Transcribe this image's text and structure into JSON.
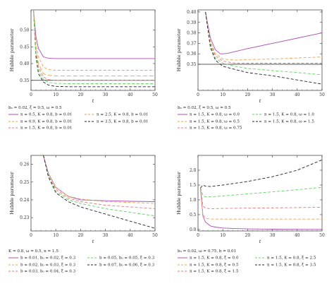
{
  "colors": {
    "purple": "#b04fb4",
    "orange": "#f0a050",
    "pink": "#e87878",
    "green": "#5fd45f",
    "black": "#222222",
    "gray": "#707070"
  },
  "chart_data": [
    {
      "type": "line",
      "ylabel": "Hubble parameter",
      "xlabel": "t",
      "xlim": [
        0,
        50
      ],
      "ylim": [
        0.32,
        0.56
      ],
      "xticks": [
        0,
        10,
        20,
        30,
        40,
        50
      ],
      "yticks": [
        0.35,
        0.4,
        0.45,
        0.5
      ],
      "yticklabels": [
        "0.35",
        "0.40",
        "0.45",
        "0.50"
      ],
      "legend_title": "b₀ = 0.02, ξ = 0.5, ω = 0.5",
      "hline": 0.35,
      "series": [
        {
          "name": "n = 0.5, K = 0.8, b = 0.01",
          "color": "purple",
          "dash": "solid",
          "x": [
            1,
            2,
            3,
            5,
            7,
            10,
            15,
            20,
            30,
            40,
            50
          ],
          "y": [
            0.56,
            0.48,
            0.445,
            0.42,
            0.416,
            0.415,
            0.415,
            0.415,
            0.415,
            0.415,
            0.415
          ]
        },
        {
          "name": "n = 2.5, K = 0.8, b = 0.01",
          "color": "orange",
          "dash": "dash",
          "x": [
            1,
            2,
            3,
            5,
            7,
            10,
            15,
            20,
            30,
            40,
            50
          ],
          "y": [
            0.56,
            0.46,
            0.42,
            0.39,
            0.382,
            0.38,
            0.38,
            0.38,
            0.38,
            0.38,
            0.38
          ]
        },
        {
          "name": "n = 0.9, K = 0.8, b = 0.01",
          "color": "orange",
          "dash": "dash2",
          "x": [
            1,
            2,
            3,
            5,
            7,
            10,
            15,
            20,
            30,
            40,
            50
          ],
          "y": [
            0.56,
            0.44,
            0.4,
            0.37,
            0.365,
            0.363,
            0.363,
            0.363,
            0.363,
            0.363,
            0.363
          ]
        },
        {
          "name": "n = 3.5, K = 0.8, b = 0.01",
          "color": "black",
          "dash": "dash",
          "x": [
            1,
            2,
            3,
            5,
            7,
            10,
            15,
            20,
            30,
            40,
            50
          ],
          "y": [
            0.56,
            0.42,
            0.37,
            0.345,
            0.336,
            0.332,
            0.331,
            0.331,
            0.331,
            0.331,
            0.331
          ]
        },
        {
          "name": "n = 1.5, K = 0.8, b = 0.01",
          "color": "pink",
          "dash": "dash",
          "x": [
            1,
            2,
            3,
            5,
            7,
            10,
            15,
            20,
            30,
            40,
            50
          ],
          "y": [
            0.56,
            0.435,
            0.39,
            0.36,
            0.352,
            0.35,
            0.35,
            0.35,
            0.35,
            0.35,
            0.35
          ]
        },
        {
          "name": "",
          "color": "green",
          "dash": "dash",
          "x": [
            1,
            2,
            3,
            5,
            7,
            10,
            15,
            20,
            30,
            40,
            50
          ],
          "y": [
            0.56,
            0.43,
            0.38,
            0.352,
            0.344,
            0.341,
            0.34,
            0.34,
            0.34,
            0.34,
            0.34
          ]
        }
      ]
    },
    {
      "type": "line",
      "ylabel": "Hubble parameter",
      "xlabel": "t",
      "xlim": [
        0,
        50
      ],
      "ylim": [
        0.325,
        0.402
      ],
      "xticks": [
        0,
        10,
        20,
        30,
        40,
        50
      ],
      "yticks": [
        0.35,
        0.36,
        0.37,
        0.38,
        0.39,
        0.4
      ],
      "yticklabels": [
        "0.35",
        "0.36",
        "0.37",
        "0.38",
        "0.39",
        "0.40"
      ],
      "legend_title": "b₀ = 0.02, ξ = 0.5, ω = 0.5",
      "hline": 0.35,
      "series": [
        {
          "name": "n = 1.5, K = 0.8, ω = 0.0",
          "color": "purple",
          "dash": "solid",
          "x": [
            3,
            5,
            7,
            9,
            10,
            12,
            20,
            30,
            40,
            50
          ],
          "y": [
            0.4,
            0.375,
            0.364,
            0.36,
            0.36,
            0.3605,
            0.365,
            0.37,
            0.375,
            0.38
          ]
        },
        {
          "name": "n = 1.5, K = 0.8, ω = 0.5",
          "color": "orange",
          "dash": "dash",
          "x": [
            3,
            5,
            7,
            10,
            15,
            20,
            30,
            40,
            50
          ],
          "y": [
            0.4,
            0.372,
            0.36,
            0.355,
            0.354,
            0.3545,
            0.355,
            0.356,
            0.357
          ]
        },
        {
          "name": "n = 1.5, K = 0.8, ω = 0.75",
          "color": "pink",
          "dash": "dash",
          "x": [
            3,
            5,
            7,
            10,
            15,
            20,
            30,
            40,
            50
          ],
          "y": [
            0.4,
            0.37,
            0.358,
            0.353,
            0.351,
            0.351,
            0.351,
            0.351,
            0.351
          ]
        },
        {
          "name": "n = 1.5, K = 0.8, ω = 1.0",
          "color": "green",
          "dash": "dash",
          "x": [
            3,
            5,
            7,
            10,
            15,
            20,
            30,
            40,
            50
          ],
          "y": [
            0.4,
            0.368,
            0.356,
            0.351,
            0.348,
            0.346,
            0.344,
            0.342,
            0.34
          ]
        },
        {
          "name": "n = 1.5, K = 0.8, ω = 1.5",
          "color": "black",
          "dash": "dash",
          "x": [
            3,
            5,
            7,
            10,
            15,
            20,
            30,
            40,
            50
          ],
          "y": [
            0.4,
            0.366,
            0.354,
            0.348,
            0.345,
            0.342,
            0.339,
            0.335,
            0.331
          ]
        }
      ]
    },
    {
      "type": "line",
      "ylabel": "Hubble parameter",
      "xlabel": "t",
      "xlim": [
        0,
        50
      ],
      "ylim": [
        0.2225,
        0.265
      ],
      "xticks": [
        0,
        10,
        20,
        30,
        40,
        50
      ],
      "yticks": [
        0.23,
        0.24,
        0.25,
        0.26
      ],
      "yticklabels": [
        "0.23",
        "0.24",
        "0.25",
        "0.26"
      ],
      "legend_title": "K = 0.8, ω = 0.5, n = 1.5",
      "series": [
        {
          "name": "b = 0.01, b₀ = 0.02, ξ = 0.3",
          "color": "purple",
          "dash": "solid",
          "x": [
            5,
            7,
            10,
            15,
            20,
            30,
            40,
            50
          ],
          "y": [
            0.265,
            0.255,
            0.247,
            0.242,
            0.24,
            0.2395,
            0.2392,
            0.239
          ]
        },
        {
          "name": "b = 0.02, b₀ = 0.03, ξ = 0.3",
          "color": "orange",
          "dash": "dash",
          "x": [
            5,
            7,
            10,
            15,
            20,
            30,
            40,
            50
          ],
          "y": [
            0.265,
            0.255,
            0.247,
            0.242,
            0.2405,
            0.239,
            0.2385,
            0.238
          ]
        },
        {
          "name": "b = 0.03, b₀ = 0.04, ξ = 0.3",
          "color": "pink",
          "dash": "dash",
          "x": [
            5,
            7,
            10,
            15,
            20,
            30,
            40,
            50
          ],
          "y": [
            0.265,
            0.254,
            0.246,
            0.241,
            0.239,
            0.237,
            0.236,
            0.235
          ]
        },
        {
          "name": "b = 0.05, b₀ = 0.05, ξ = 0.3",
          "color": "green",
          "dash": "dash",
          "x": [
            5,
            7,
            10,
            15,
            20,
            30,
            40,
            50
          ],
          "y": [
            0.265,
            0.254,
            0.245,
            0.24,
            0.238,
            0.235,
            0.233,
            0.231
          ]
        },
        {
          "name": "b = 0.07, b₀ = 0.06, ξ = 0.3",
          "color": "black",
          "dash": "dash",
          "x": [
            5,
            7,
            10,
            15,
            20,
            30,
            40,
            50
          ],
          "y": [
            0.265,
            0.253,
            0.244,
            0.239,
            0.236,
            0.232,
            0.228,
            0.224
          ]
        }
      ]
    },
    {
      "type": "line",
      "ylabel": "Hubble parameter",
      "xlabel": "t",
      "xlim": [
        0,
        50
      ],
      "ylim": [
        -0.05,
        2.5
      ],
      "xticks": [
        0,
        10,
        20,
        30,
        40,
        50
      ],
      "yticks": [
        0.0,
        0.5,
        1.0,
        1.5,
        2.0
      ],
      "yticklabels": [
        "0.0",
        "0.5",
        "1.0",
        "1.5",
        "2.0"
      ],
      "legend_title": "b₀ = 0.02, ω = 0.75, b = 0.01",
      "series": [
        {
          "name": "n = 1.5, K = 0.8, ξ = 0.0",
          "color": "purple",
          "dash": "solid",
          "x": [
            1,
            2,
            3,
            5,
            7,
            10,
            15,
            20,
            30,
            40,
            50
          ],
          "y": [
            1.4,
            0.45,
            0.25,
            0.12,
            0.08,
            0.05,
            0.03,
            0.02,
            0.01,
            0.005,
            0.003
          ]
        },
        {
          "name": "n = 1.5, K = 0.8, ξ = 0.5",
          "color": "orange",
          "dash": "dash",
          "x": [
            1,
            2,
            3,
            5,
            10,
            20,
            30,
            40,
            50
          ],
          "y": [
            1.4,
            0.5,
            0.38,
            0.35,
            0.35,
            0.35,
            0.35,
            0.35,
            0.35
          ]
        },
        {
          "name": "n = 1.5, K = 0.8, ξ = 1.5",
          "color": "pink",
          "dash": "dash",
          "x": [
            1,
            2,
            3,
            5,
            10,
            20,
            30,
            40,
            50
          ],
          "y": [
            1.4,
            0.8,
            0.72,
            0.7,
            0.71,
            0.72,
            0.73,
            0.74,
            0.75
          ]
        },
        {
          "name": "n = 1.5, K = 0.8, ξ = 2.5",
          "color": "green",
          "dash": "dash",
          "x": [
            1,
            2,
            3,
            5,
            10,
            20,
            30,
            40,
            50
          ],
          "y": [
            1.4,
            1.15,
            1.1,
            1.1,
            1.13,
            1.2,
            1.27,
            1.34,
            1.42
          ]
        },
        {
          "name": "n = 1.5, K = 0.8, ξ = 3.5",
          "color": "black",
          "dash": "dash",
          "x": [
            1,
            2,
            3,
            5,
            10,
            20,
            30,
            40,
            50
          ],
          "y": [
            1.4,
            1.5,
            1.46,
            1.45,
            1.5,
            1.62,
            1.78,
            2.0,
            2.35
          ]
        }
      ]
    }
  ]
}
